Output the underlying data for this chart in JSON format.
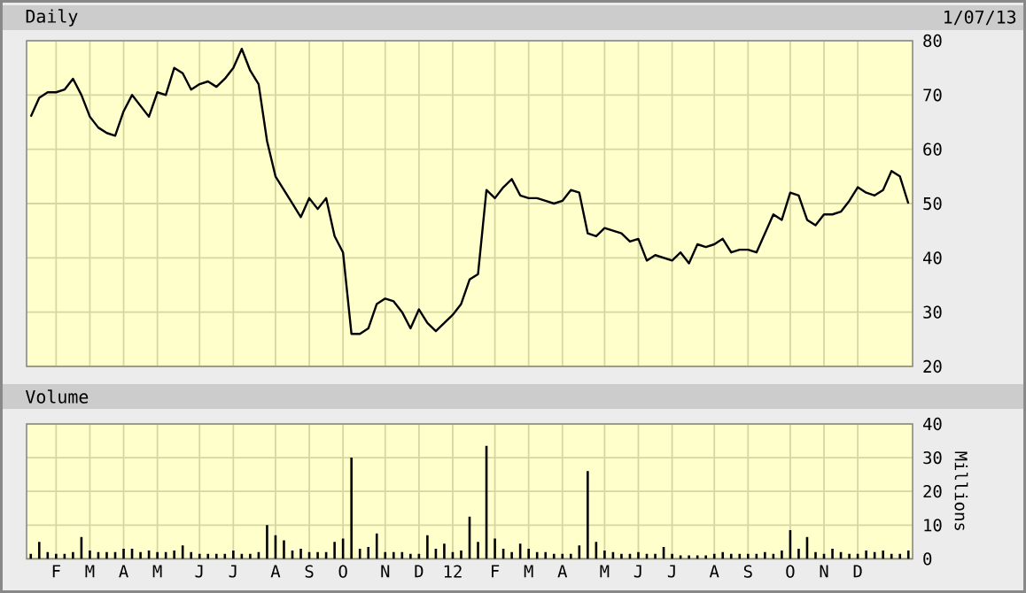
{
  "chart_data": [
    {
      "type": "line",
      "title": "Daily",
      "subtitle": "1/07/13",
      "categories": [
        null,
        null,
        null,
        null,
        null,
        null,
        null,
        null,
        null,
        null,
        null,
        null,
        null,
        null,
        null,
        null,
        null,
        null,
        null,
        null,
        null,
        null,
        null,
        null,
        null,
        null,
        null,
        null,
        null,
        null,
        null,
        null,
        null,
        null,
        null,
        null,
        null,
        null,
        null,
        null,
        null,
        null,
        null,
        null,
        null,
        null,
        null,
        null,
        null,
        null,
        null,
        null,
        null,
        null,
        null,
        null,
        null,
        null,
        null,
        null,
        null,
        null,
        null,
        null,
        null,
        null,
        null,
        null,
        null,
        null,
        null,
        null,
        null,
        null,
        null,
        null,
        null,
        null,
        null,
        null,
        null,
        null,
        null,
        null,
        null,
        null,
        null,
        null,
        null,
        null,
        null,
        null,
        null,
        null,
        null,
        null,
        null,
        null,
        null,
        null,
        null,
        null,
        null,
        null,
        null
      ],
      "values": [
        66,
        69.5,
        70.5,
        70.5,
        71,
        73,
        70,
        66,
        64,
        63,
        62.5,
        67,
        70,
        68,
        66,
        70.5,
        70,
        75,
        74,
        71,
        72,
        72.5,
        71.5,
        73,
        75,
        78.5,
        74.5,
        72,
        61.5,
        55,
        52.5,
        50,
        47.5,
        51,
        49,
        51,
        44,
        41,
        26,
        26,
        27,
        31.5,
        32.5,
        32,
        30,
        27,
        30.5,
        28,
        26.5,
        28,
        29.5,
        31.5,
        36,
        37,
        52.5,
        51,
        53,
        54.5,
        51.5,
        51,
        51,
        50.5,
        50,
        50.5,
        52.5,
        52,
        44.5,
        44,
        45.5,
        45,
        44.5,
        43,
        43.5,
        39.5,
        40.5,
        40,
        39.5,
        41,
        39,
        42.5,
        42,
        42.5,
        43.5,
        41,
        41.5,
        41.5,
        41,
        44.5,
        48,
        47,
        52,
        51.5,
        47,
        46,
        48,
        48,
        48.5,
        50.5,
        53,
        52,
        51.5,
        52.5,
        56,
        55,
        50
      ],
      "color": "#000000",
      "ylim": [
        20,
        80
      ],
      "yticks": [
        20,
        30,
        40,
        50,
        60,
        70,
        80
      ],
      "tick_labels": "y",
      "grid": true
    },
    {
      "type": "bar",
      "title": "Volume",
      "ylabel": "Millions",
      "categories": [
        null,
        null,
        null,
        "F",
        null,
        null,
        null,
        "M",
        null,
        null,
        null,
        "A",
        null,
        null,
        null,
        "M",
        null,
        null,
        null,
        null,
        "J",
        null,
        null,
        null,
        "J",
        null,
        null,
        null,
        null,
        "A",
        null,
        null,
        null,
        "S",
        null,
        null,
        null,
        "O",
        null,
        null,
        null,
        null,
        "N",
        null,
        null,
        null,
        "D",
        null,
        null,
        null,
        "12",
        null,
        null,
        null,
        null,
        "F",
        null,
        null,
        null,
        "M",
        null,
        null,
        null,
        "A",
        null,
        null,
        null,
        null,
        "M",
        null,
        null,
        null,
        "J",
        null,
        null,
        null,
        "J",
        null,
        null,
        null,
        null,
        "A",
        null,
        null,
        null,
        "S",
        null,
        null,
        null,
        null,
        "O",
        null,
        null,
        null,
        "N",
        null,
        null,
        null,
        "D",
        null,
        null,
        null,
        null,
        null,
        null
      ],
      "values": [
        1.5,
        5,
        2,
        1.5,
        1.5,
        2,
        6.5,
        2.5,
        2,
        2,
        2,
        3,
        3,
        2,
        2.5,
        2,
        2,
        2.5,
        4,
        2,
        1.5,
        1.5,
        1.5,
        1.5,
        2.5,
        1.5,
        1.5,
        2,
        10,
        7,
        5.5,
        2.5,
        3,
        2,
        2,
        2,
        5,
        6,
        30,
        3,
        3.5,
        7.5,
        2,
        2,
        2,
        1.5,
        1.5,
        7,
        3,
        4.5,
        2,
        2.5,
        12.5,
        5,
        33.5,
        6,
        3,
        2,
        4.5,
        3,
        2,
        2,
        1.5,
        1.5,
        1.5,
        4,
        26,
        5,
        2.5,
        2,
        1.5,
        1.5,
        2,
        1.5,
        1.5,
        3.5,
        1.5,
        1,
        1,
        1,
        1,
        1.5,
        2,
        1.5,
        1.5,
        1.5,
        1.5,
        2,
        1.5,
        2.5,
        8.5,
        3,
        6.5,
        2,
        1.5,
        3,
        2,
        1.5,
        1.5,
        2.5,
        2,
        2.5,
        1.5,
        1.5,
        2.5
      ],
      "color": "#000000",
      "ylim": [
        0,
        40
      ],
      "yticks": [
        0,
        10,
        20,
        30,
        40
      ],
      "grid": true
    }
  ]
}
